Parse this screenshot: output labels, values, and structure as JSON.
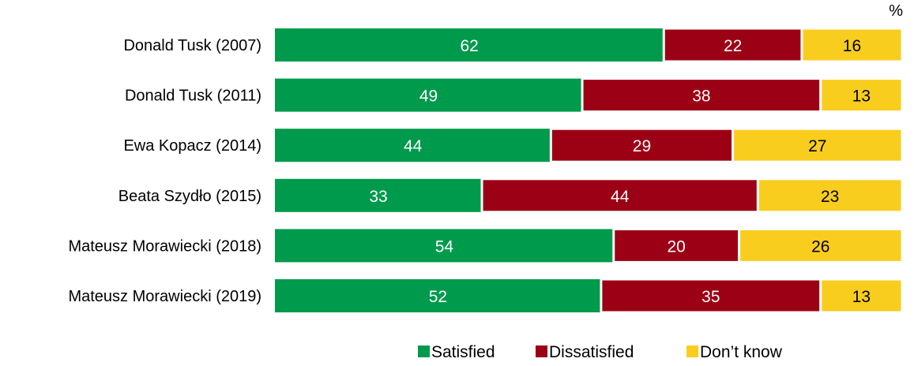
{
  "chart_data": {
    "type": "bar",
    "orientation": "horizontal",
    "stacked": true,
    "unit_label": "%",
    "categories": [
      "Donald Tusk (2007)",
      "Donald Tusk (2011)",
      "Ewa Kopacz (2014)",
      "Beata Szydło (2015)",
      "Mateusz Morawiecki (2018)",
      "Mateusz Morawiecki (2019)"
    ],
    "series": [
      {
        "name": "Satisfied",
        "color": "#009A4C",
        "values": [
          62,
          49,
          44,
          33,
          54,
          52
        ]
      },
      {
        "name": "Dissatisfied",
        "color": "#9C0014",
        "values": [
          22,
          38,
          29,
          44,
          20,
          35
        ]
      },
      {
        "name": "Don’t know",
        "color": "#F9CD1E",
        "values": [
          16,
          13,
          27,
          23,
          26,
          13
        ]
      }
    ],
    "xlim": [
      0,
      100
    ],
    "grid": false,
    "legend_position": "bottom-right"
  }
}
